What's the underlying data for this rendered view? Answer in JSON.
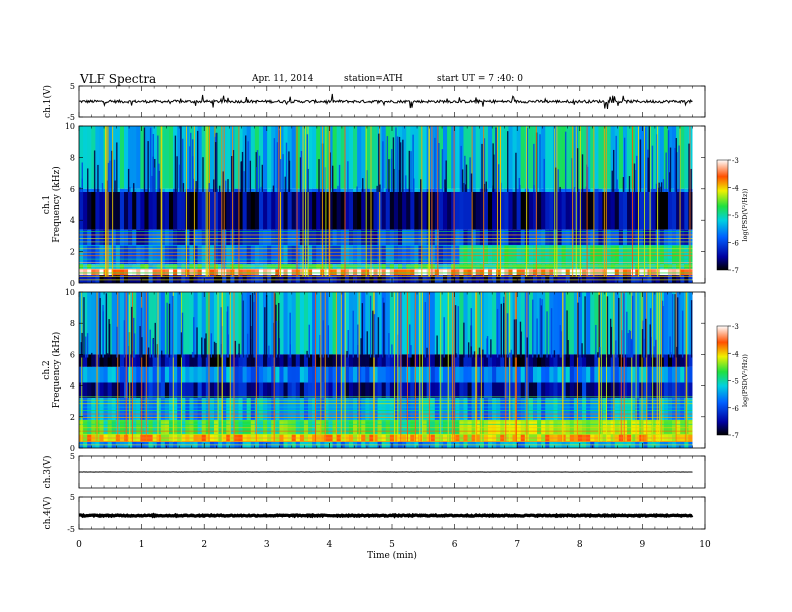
{
  "header": {
    "title": "VLF Spectra",
    "date": "Apr. 11, 2014",
    "station": "station=ATH",
    "start": "start UT =  7 :40: 0"
  },
  "chart_data": {
    "type": "heatmap",
    "x_label": "Time (min)",
    "x_range": [
      0,
      10
    ],
    "x_ticks": [
      "0",
      "1",
      "2",
      "3",
      "4",
      "5",
      "6",
      "7",
      "8",
      "9",
      "10"
    ],
    "data_end_min": 9.8,
    "panels": [
      {
        "id": "ch1_wave",
        "type": "line",
        "ylabel": "ch.1(V)",
        "y_range": [
          -5,
          5
        ],
        "y_ticks": [
          "5",
          "-5"
        ],
        "baseline": 0.0,
        "noise_amplitude": 0.9,
        "spike_density": "high"
      },
      {
        "id": "ch1_spec",
        "type": "heatmap",
        "ylabel_channel": "ch.1",
        "ylabel": "Frequency (kHz)",
        "y_range": [
          0,
          10
        ],
        "y_ticks": [
          "0",
          "2",
          "4",
          "6",
          "8",
          "10"
        ],
        "colorbar_label": "log(PSD(V²/Hz))",
        "colorbar_range": [
          -7,
          -3
        ],
        "colorbar_ticks": [
          "-3",
          "-4",
          "-5",
          "-6",
          "-7"
        ],
        "bands": [
          {
            "f0": 6.0,
            "f1": 10.0,
            "psd": -5.2
          },
          {
            "f0": 5.8,
            "f1": 6.0,
            "psd": -5.6
          },
          {
            "f0": 3.4,
            "f1": 5.8,
            "psd": -6.6
          },
          {
            "f0": 2.4,
            "f1": 3.4,
            "psd": -6.1
          },
          {
            "f0": 1.2,
            "f1": 2.4,
            "psd": -5.8
          },
          {
            "f0": 0.9,
            "f1": 1.2,
            "psd": -5.0
          },
          {
            "f0": 0.5,
            "f1": 0.9,
            "psd": -3.3
          },
          {
            "f0": 0.0,
            "f1": 0.5,
            "psd": -6.5
          }
        ],
        "change_time_min": 6.05,
        "after_change_band": {
          "f0": 1.2,
          "f1": 2.6,
          "psd": -4.9
        }
      },
      {
        "id": "ch2_spec",
        "type": "heatmap",
        "ylabel_channel": "ch.2",
        "ylabel": "Frequency (kHz)",
        "y_range": [
          0,
          10
        ],
        "y_ticks": [
          "0",
          "2",
          "4",
          "6",
          "8",
          "10"
        ],
        "colorbar_label": "log(PSD(V²/Hz))",
        "colorbar_range": [
          -7,
          -3
        ],
        "colorbar_ticks": [
          "-3",
          "-4",
          "-5",
          "-6",
          "-7"
        ],
        "bands": [
          {
            "f0": 6.0,
            "f1": 10.0,
            "psd": -5.3
          },
          {
            "f0": 5.2,
            "f1": 6.0,
            "psd": -6.6
          },
          {
            "f0": 4.2,
            "f1": 5.2,
            "psd": -5.6
          },
          {
            "f0": 3.2,
            "f1": 4.2,
            "psd": -6.4
          },
          {
            "f0": 1.8,
            "f1": 3.2,
            "psd": -5.5
          },
          {
            "f0": 0.9,
            "f1": 1.8,
            "psd": -4.7
          },
          {
            "f0": 0.4,
            "f1": 0.9,
            "psd": -4.0
          },
          {
            "f0": 0.0,
            "f1": 0.4,
            "psd": -5.5
          }
        ],
        "change_time_min": 6.05,
        "after_change_band": {
          "f0": 1.0,
          "f1": 2.4,
          "psd": -4.3
        }
      },
      {
        "id": "ch3_wave",
        "type": "line",
        "ylabel": "ch.3(V)",
        "y_range": [
          -5,
          5
        ],
        "y_ticks": [
          "5"
        ],
        "baseline": 0.0,
        "noise_amplitude": 0.05,
        "spike_density": "none"
      },
      {
        "id": "ch4_wave",
        "type": "line",
        "ylabel": "ch.4(V)",
        "y_range": [
          -5,
          5
        ],
        "y_ticks": [
          "5",
          "-5"
        ],
        "baseline": -0.8,
        "noise_amplitude": 0.35,
        "spike_density": "none"
      }
    ]
  }
}
